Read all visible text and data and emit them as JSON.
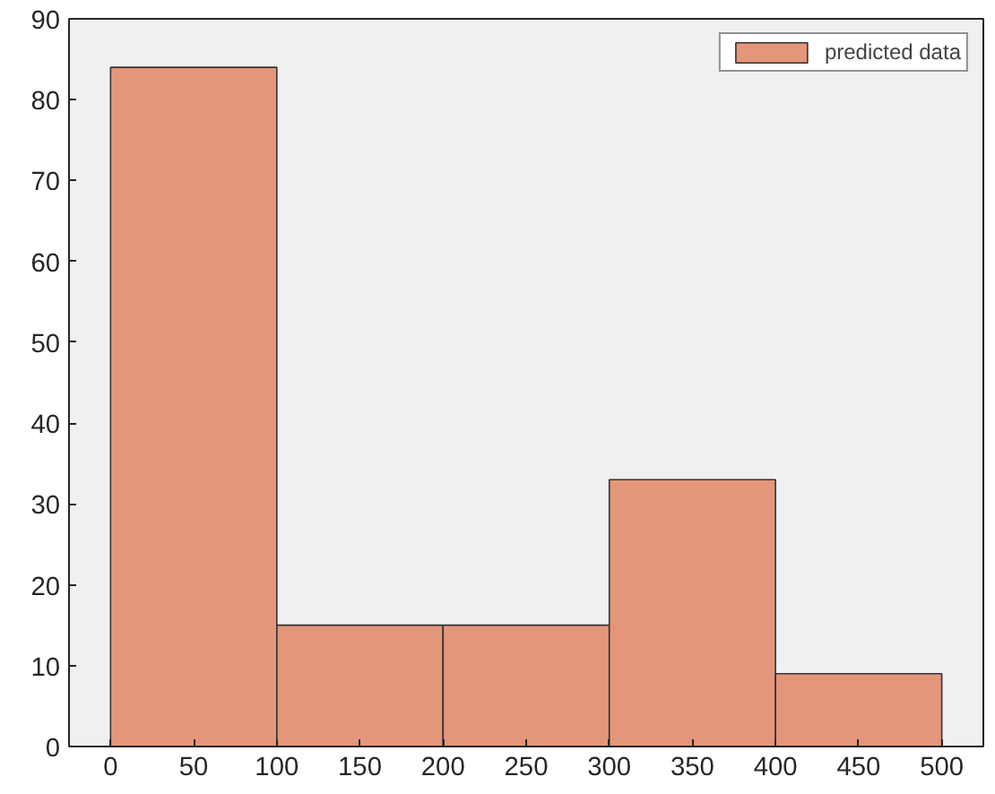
{
  "chart_data": {
    "type": "histogram",
    "bins": [
      0,
      100,
      200,
      300,
      400,
      500
    ],
    "series": [
      {
        "name": "predicted data",
        "color": "#e4967a",
        "values": [
          84,
          15,
          15,
          33,
          9
        ]
      }
    ],
    "xlim": [
      -25,
      525
    ],
    "xticks": [
      0,
      50,
      100,
      150,
      200,
      250,
      300,
      350,
      400,
      450,
      500
    ],
    "ylim": [
      0,
      90
    ],
    "yticks": [
      0,
      10,
      20,
      30,
      40,
      50,
      60,
      70,
      80,
      90
    ],
    "grid": false,
    "legend": "top right"
  }
}
